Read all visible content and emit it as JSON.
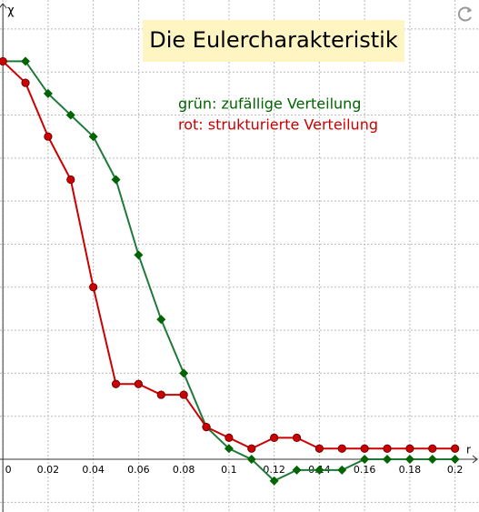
{
  "chart_data": {
    "type": "line",
    "title": "Die Eulercharakteristik",
    "annotations": [
      "grün: zufällige Verteilung",
      "rot: strukturierte Verteilung"
    ],
    "x_label": "r",
    "y_label": "χ",
    "x": [
      0,
      0.01,
      0.02,
      0.03,
      0.04,
      0.05,
      0.06,
      0.07,
      0.08,
      0.09,
      0.1,
      0.11,
      0.12,
      0.13,
      0.14,
      0.15,
      0.16,
      0.17,
      0.18,
      0.19,
      0.2
    ],
    "series": [
      {
        "color": "#006400",
        "line_color": "#1f7a3a",
        "marker": "diamond",
        "values": [
          37,
          37,
          34,
          32,
          30,
          26,
          19,
          13,
          8,
          3,
          1,
          0,
          -2,
          -1,
          -1,
          -1,
          0,
          0,
          0,
          0,
          0
        ]
      },
      {
        "color": "#cc0000",
        "line_color": "#cc0000",
        "marker": "circle",
        "values": [
          37,
          35,
          30,
          26,
          16,
          7,
          7,
          6,
          6,
          3,
          2,
          1,
          2,
          2,
          1,
          1,
          1,
          1,
          1,
          1,
          1
        ]
      }
    ],
    "xlim": [
      -0.00127,
      0.2106
    ],
    "ylim": [
      -4.9,
      42.7
    ],
    "xticks": [
      0,
      0.02,
      0.04,
      0.06,
      0.08,
      0.1,
      0.12,
      0.14,
      0.16,
      0.18,
      0.2
    ],
    "yticks": [
      -4,
      0,
      4,
      8,
      12,
      16,
      20,
      24,
      28,
      32,
      36,
      40
    ],
    "grid": true
  }
}
